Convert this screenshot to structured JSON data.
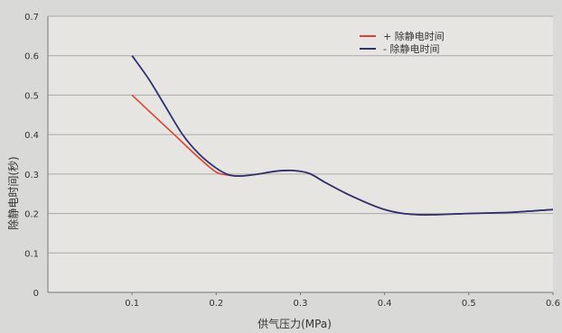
{
  "chart_data": {
    "type": "line",
    "title": "",
    "xlabel": "供气压力(MPa)",
    "ylabel": "除静电时间(秒)",
    "xlim": [
      0,
      0.6
    ],
    "ylim": [
      0,
      0.7
    ],
    "x_ticks": [
      "0.1",
      "0.2",
      "0.3",
      "0.4",
      "0.5",
      "0.6"
    ],
    "y_ticks": [
      "0",
      "0.1",
      "0.2",
      "0.3",
      "0.4",
      "0.5",
      "0.6",
      "0.7"
    ],
    "grid": "horizontal",
    "legend_position": "top-right",
    "series": [
      {
        "name": "+ 除静电时间",
        "color": "#d9442f",
        "x": [
          0.1,
          0.12,
          0.15,
          0.18,
          0.2,
          0.215,
          0.23,
          0.25,
          0.27,
          0.29,
          0.31,
          0.33,
          0.36,
          0.4,
          0.44,
          0.5,
          0.55,
          0.6
        ],
        "y": [
          0.5,
          0.46,
          0.4,
          0.34,
          0.305,
          0.297,
          0.295,
          0.3,
          0.307,
          0.309,
          0.302,
          0.278,
          0.245,
          0.21,
          0.197,
          0.2,
          0.203,
          0.21
        ]
      },
      {
        "name": "- 除静电时间",
        "color": "#2c3370",
        "x": [
          0.1,
          0.12,
          0.14,
          0.16,
          0.18,
          0.2,
          0.215,
          0.23,
          0.25,
          0.27,
          0.29,
          0.31,
          0.33,
          0.36,
          0.4,
          0.44,
          0.5,
          0.55,
          0.6
        ],
        "y": [
          0.6,
          0.54,
          0.47,
          0.4,
          0.35,
          0.315,
          0.298,
          0.295,
          0.3,
          0.307,
          0.309,
          0.302,
          0.278,
          0.245,
          0.21,
          0.197,
          0.2,
          0.203,
          0.21
        ]
      }
    ]
  }
}
